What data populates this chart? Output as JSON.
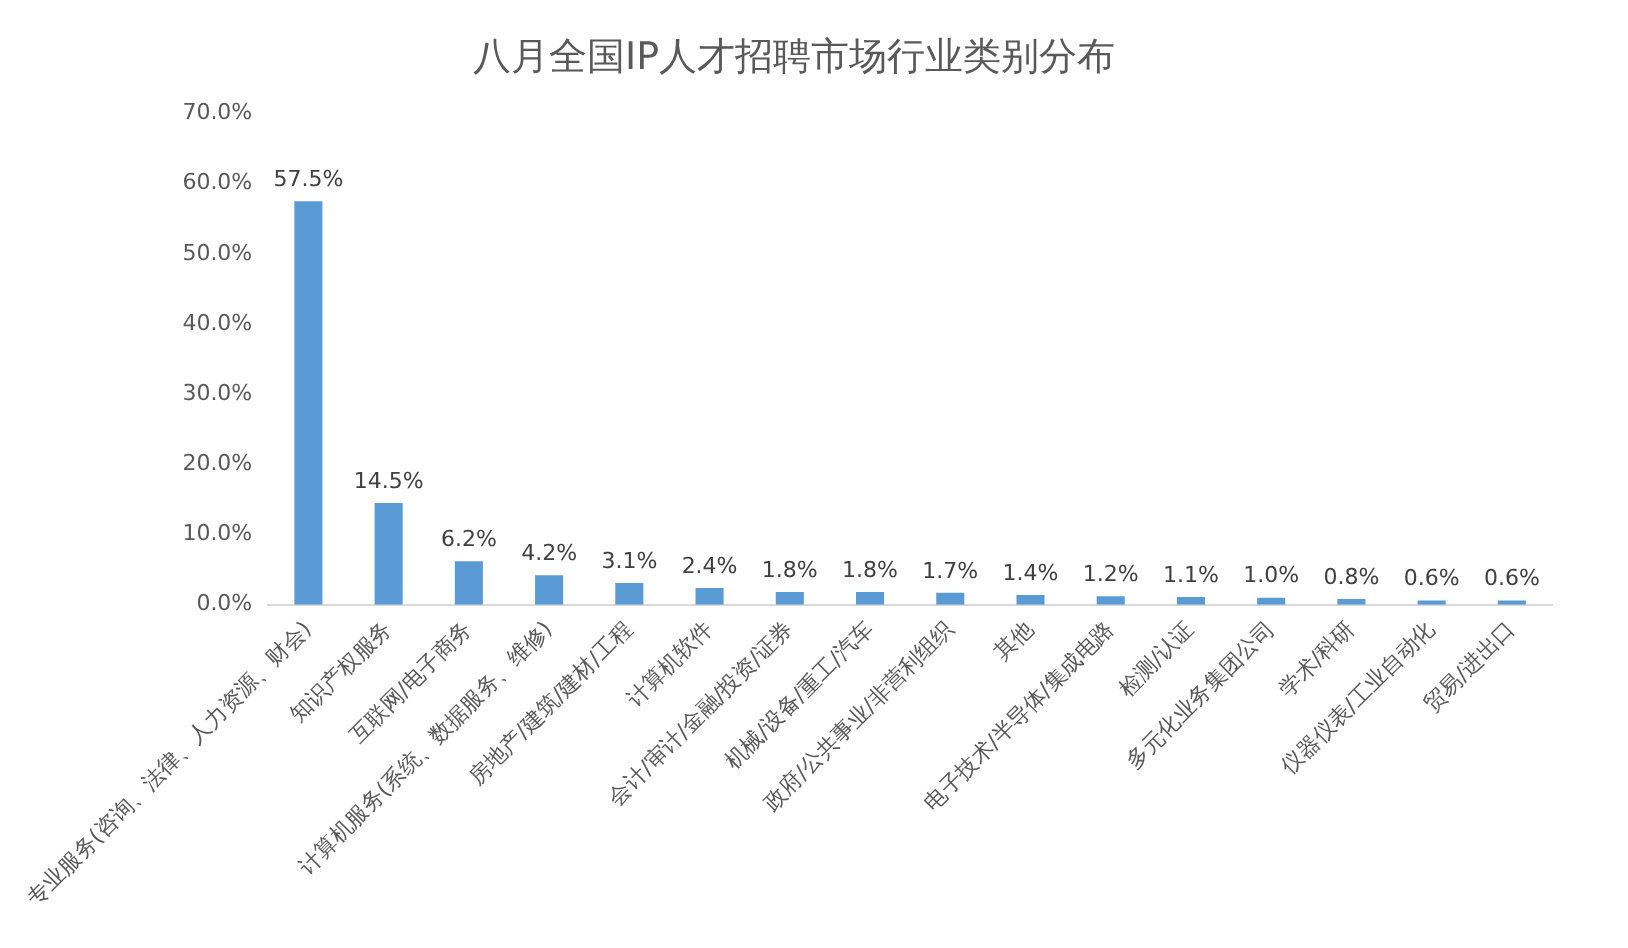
{
  "chart_data": {
    "type": "bar",
    "title": "八月全国IP人才招聘市场行业类别分布",
    "categories": [
      "专业服务(咨询、法律、人力资源、财会)",
      "知识产权服务",
      "互联网/电子商务",
      "计算机服务(系统、数据服务、维修)",
      "房地产/建筑/建材/工程",
      "计算机软件",
      "会计/审计/金融/投资/证券",
      "机械/设备/重工/汽车",
      "政府/公共事业/非营利组织",
      "其他",
      "电子技术/半导体/集成电路",
      "检测/认证",
      "多元化业务集团公司",
      "学术/科研",
      "仪器仪表/工业自动化",
      "贸易/进出口"
    ],
    "values": [
      57.5,
      14.5,
      6.2,
      4.2,
      3.1,
      2.4,
      1.8,
      1.8,
      1.7,
      1.4,
      1.2,
      1.1,
      1.0,
      0.8,
      0.6,
      0.6
    ],
    "value_labels": [
      "57.5%",
      "14.5%",
      "6.2%",
      "4.2%",
      "3.1%",
      "2.4%",
      "1.8%",
      "1.8%",
      "1.7%",
      "1.4%",
      "1.2%",
      "1.1%",
      "1.0%",
      "0.8%",
      "0.6%",
      "0.6%"
    ],
    "color": "#5b9bd5",
    "ylim": [
      0,
      70
    ],
    "yticks": [
      {
        "value": 0,
        "label": "0.0%"
      },
      {
        "value": 10,
        "label": "10.0%"
      },
      {
        "value": 20,
        "label": "20.0%"
      },
      {
        "value": 30,
        "label": "30.0%"
      },
      {
        "value": 40,
        "label": "40.0%"
      },
      {
        "value": 50,
        "label": "50.0%"
      },
      {
        "value": 60,
        "label": "60.0%"
      },
      {
        "value": 70,
        "label": "70.0%"
      }
    ],
    "grid": false,
    "legend": false
  }
}
